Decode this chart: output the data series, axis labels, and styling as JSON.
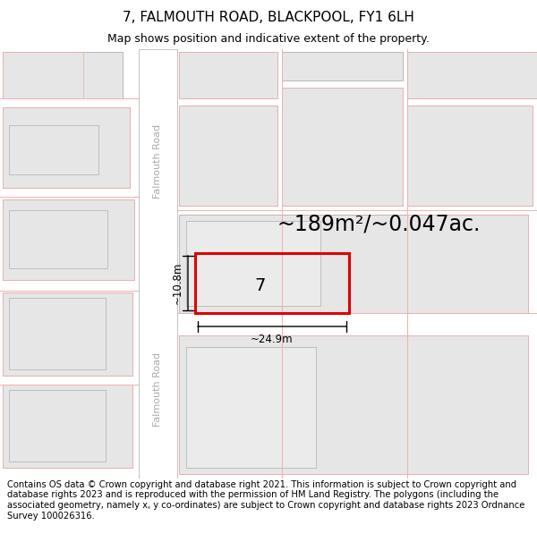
{
  "title": "7, FALMOUTH ROAD, BLACKPOOL, FY1 6LH",
  "subtitle": "Map shows position and indicative extent of the property.",
  "area_text": "~189m²/~0.047ac.",
  "property_number": "7",
  "dim_width": "~24.9m",
  "dim_height": "~10.8m",
  "footer": "Contains OS data © Crown copyright and database right 2021. This information is subject to Crown copyright and database rights 2023 and is reproduced with the permission of HM Land Registry. The polygons (including the associated geometry, namely x, y co-ordinates) are subject to Crown copyright and database rights 2023 Ordnance Survey 100026316.",
  "bg_color": "#ffffff",
  "map_bg": "#f7f7f7",
  "building_fill": "#e6e6e6",
  "highlight_color": "#dd0000",
  "highlight_fill": "none",
  "road_fill": "#ffffff",
  "light_red": "#f0b0b0",
  "gray_edge": "#b8b8b8",
  "title_fontsize": 11,
  "subtitle_fontsize": 9,
  "footer_fontsize": 7.2,
  "area_fontsize": 17,
  "label_fontsize": 14,
  "dim_fontsize": 8.5,
  "road_label_fontsize": 8
}
